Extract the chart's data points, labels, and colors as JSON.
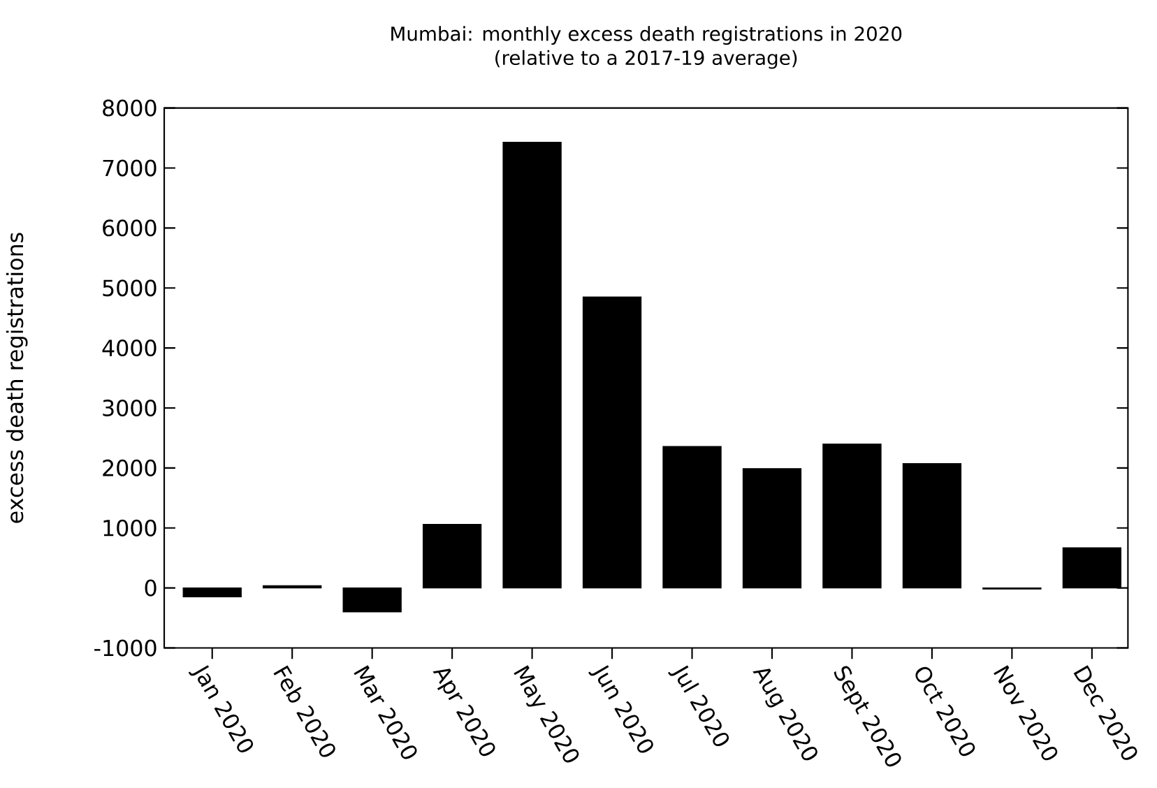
{
  "chart_data": {
    "type": "bar",
    "title": "Mumbai: monthly excess death registrations in 2020\n(relative to a 2017-19 average)",
    "ylabel": "excess death registrations",
    "categories": [
      "Jan 2020",
      "Feb 2020",
      "Mar 2020",
      "Apr 2020",
      "May 2020",
      "Jun 2020",
      "Jul 2020",
      "Aug 2020",
      "Sept 2020",
      "Oct 2020",
      "Nov 2020",
      "Dec 2020"
    ],
    "values": [
      -150,
      40,
      -400,
      1060,
      7430,
      4850,
      2360,
      1990,
      2400,
      2075,
      -20,
      670
    ],
    "color": "#000000",
    "ylim": [
      -1000,
      8000
    ],
    "yticks": [
      -1000,
      0,
      1000,
      2000,
      3000,
      4000,
      5000,
      6000,
      7000,
      8000
    ],
    "grid": false
  }
}
